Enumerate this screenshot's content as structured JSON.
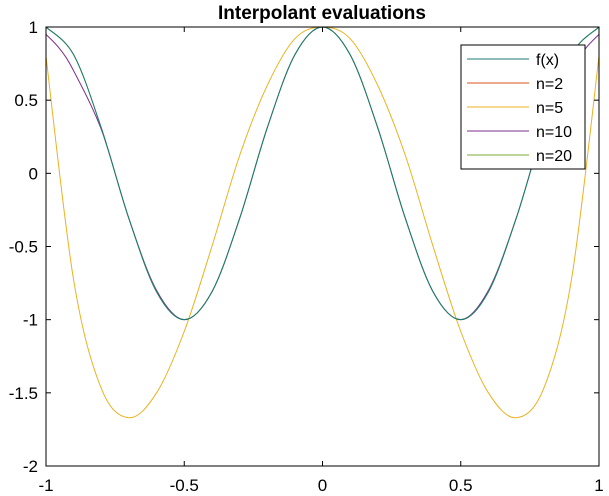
{
  "chart_data": {
    "type": "line",
    "title": "Interpolant evaluations",
    "xlabel": "",
    "ylabel": "",
    "xlim": [
      -1,
      1
    ],
    "ylim": [
      -2,
      1
    ],
    "xticks": [
      -1,
      -0.5,
      0,
      0.5,
      1
    ],
    "xtick_labels": [
      "-1",
      "-0.5",
      "0",
      "0.5",
      "1"
    ],
    "yticks": [
      -2,
      -1.5,
      -1,
      -0.5,
      0,
      0.5,
      1
    ],
    "ytick_labels": [
      "-2",
      "-1.5",
      "-1",
      "-0.5",
      "0",
      "0.5",
      "1"
    ],
    "grid": false,
    "legend_position": "top-right",
    "series": [
      {
        "name": "f(x)",
        "color": "#1b7a73",
        "x": [
          -1,
          -0.9,
          -0.8,
          -0.7,
          -0.6,
          -0.5,
          -0.4,
          -0.3,
          -0.2,
          -0.1,
          0,
          0.1,
          0.2,
          0.3,
          0.4,
          0.5,
          0.6,
          0.7,
          0.8,
          0.9,
          1
        ],
        "y": [
          1,
          0.81,
          0.31,
          -0.31,
          -0.81,
          -1,
          -0.81,
          -0.31,
          0.31,
          0.81,
          1,
          0.81,
          0.31,
          -0.31,
          -0.81,
          -1,
          -0.81,
          -0.31,
          0.31,
          0.81,
          1
        ]
      },
      {
        "name": "n=2",
        "color": "#d95319",
        "x": [
          -1,
          0,
          1
        ],
        "y": [
          1,
          1,
          1
        ]
      },
      {
        "name": "n=5",
        "color": "#edb120",
        "x": [
          -1,
          -0.9,
          -0.8,
          -0.7,
          -0.6,
          -0.5,
          -0.4,
          -0.3,
          -0.2,
          -0.1,
          0,
          0.1,
          0.2,
          0.3,
          0.4,
          0.5,
          0.6,
          0.7,
          0.8,
          0.9,
          1
        ],
        "y": [
          0.8,
          -0.73,
          -1.47,
          -1.67,
          -1.5,
          -1.08,
          -0.5,
          0.12,
          0.6,
          0.92,
          1,
          0.92,
          0.6,
          0.12,
          -0.5,
          -1.08,
          -1.5,
          -1.67,
          -1.47,
          -0.73,
          0.8
        ]
      },
      {
        "name": "n=10",
        "color": "#7e2f8e",
        "x": [
          -1,
          -0.95,
          -0.9,
          -0.8,
          -0.7,
          -0.6,
          -0.5,
          -0.4,
          -0.3,
          -0.2,
          -0.1,
          0,
          0.1,
          0.2,
          0.3,
          0.4,
          0.5,
          0.6,
          0.7,
          0.8,
          0.9,
          0.95,
          1
        ],
        "y": [
          0.95,
          0.85,
          0.7,
          0.3,
          -0.31,
          -0.8,
          -1,
          -0.81,
          -0.31,
          0.31,
          0.81,
          1,
          0.81,
          0.31,
          -0.31,
          -0.81,
          -1,
          -0.8,
          -0.31,
          0.3,
          0.7,
          0.85,
          0.95
        ]
      },
      {
        "name": "n=20",
        "color": "#77ac30",
        "x": [
          -1,
          -0.9,
          -0.8,
          -0.7,
          -0.6,
          -0.5,
          -0.4,
          -0.3,
          -0.2,
          -0.1,
          0,
          0.1,
          0.2,
          0.3,
          0.4,
          0.5,
          0.6,
          0.7,
          0.8,
          0.9,
          1
        ],
        "y": [
          1,
          0.81,
          0.31,
          -0.31,
          -0.81,
          -1,
          -0.81,
          -0.31,
          0.31,
          0.81,
          1,
          0.81,
          0.31,
          -0.31,
          -0.81,
          -1,
          -0.81,
          -0.31,
          0.31,
          0.81,
          1
        ]
      }
    ]
  }
}
